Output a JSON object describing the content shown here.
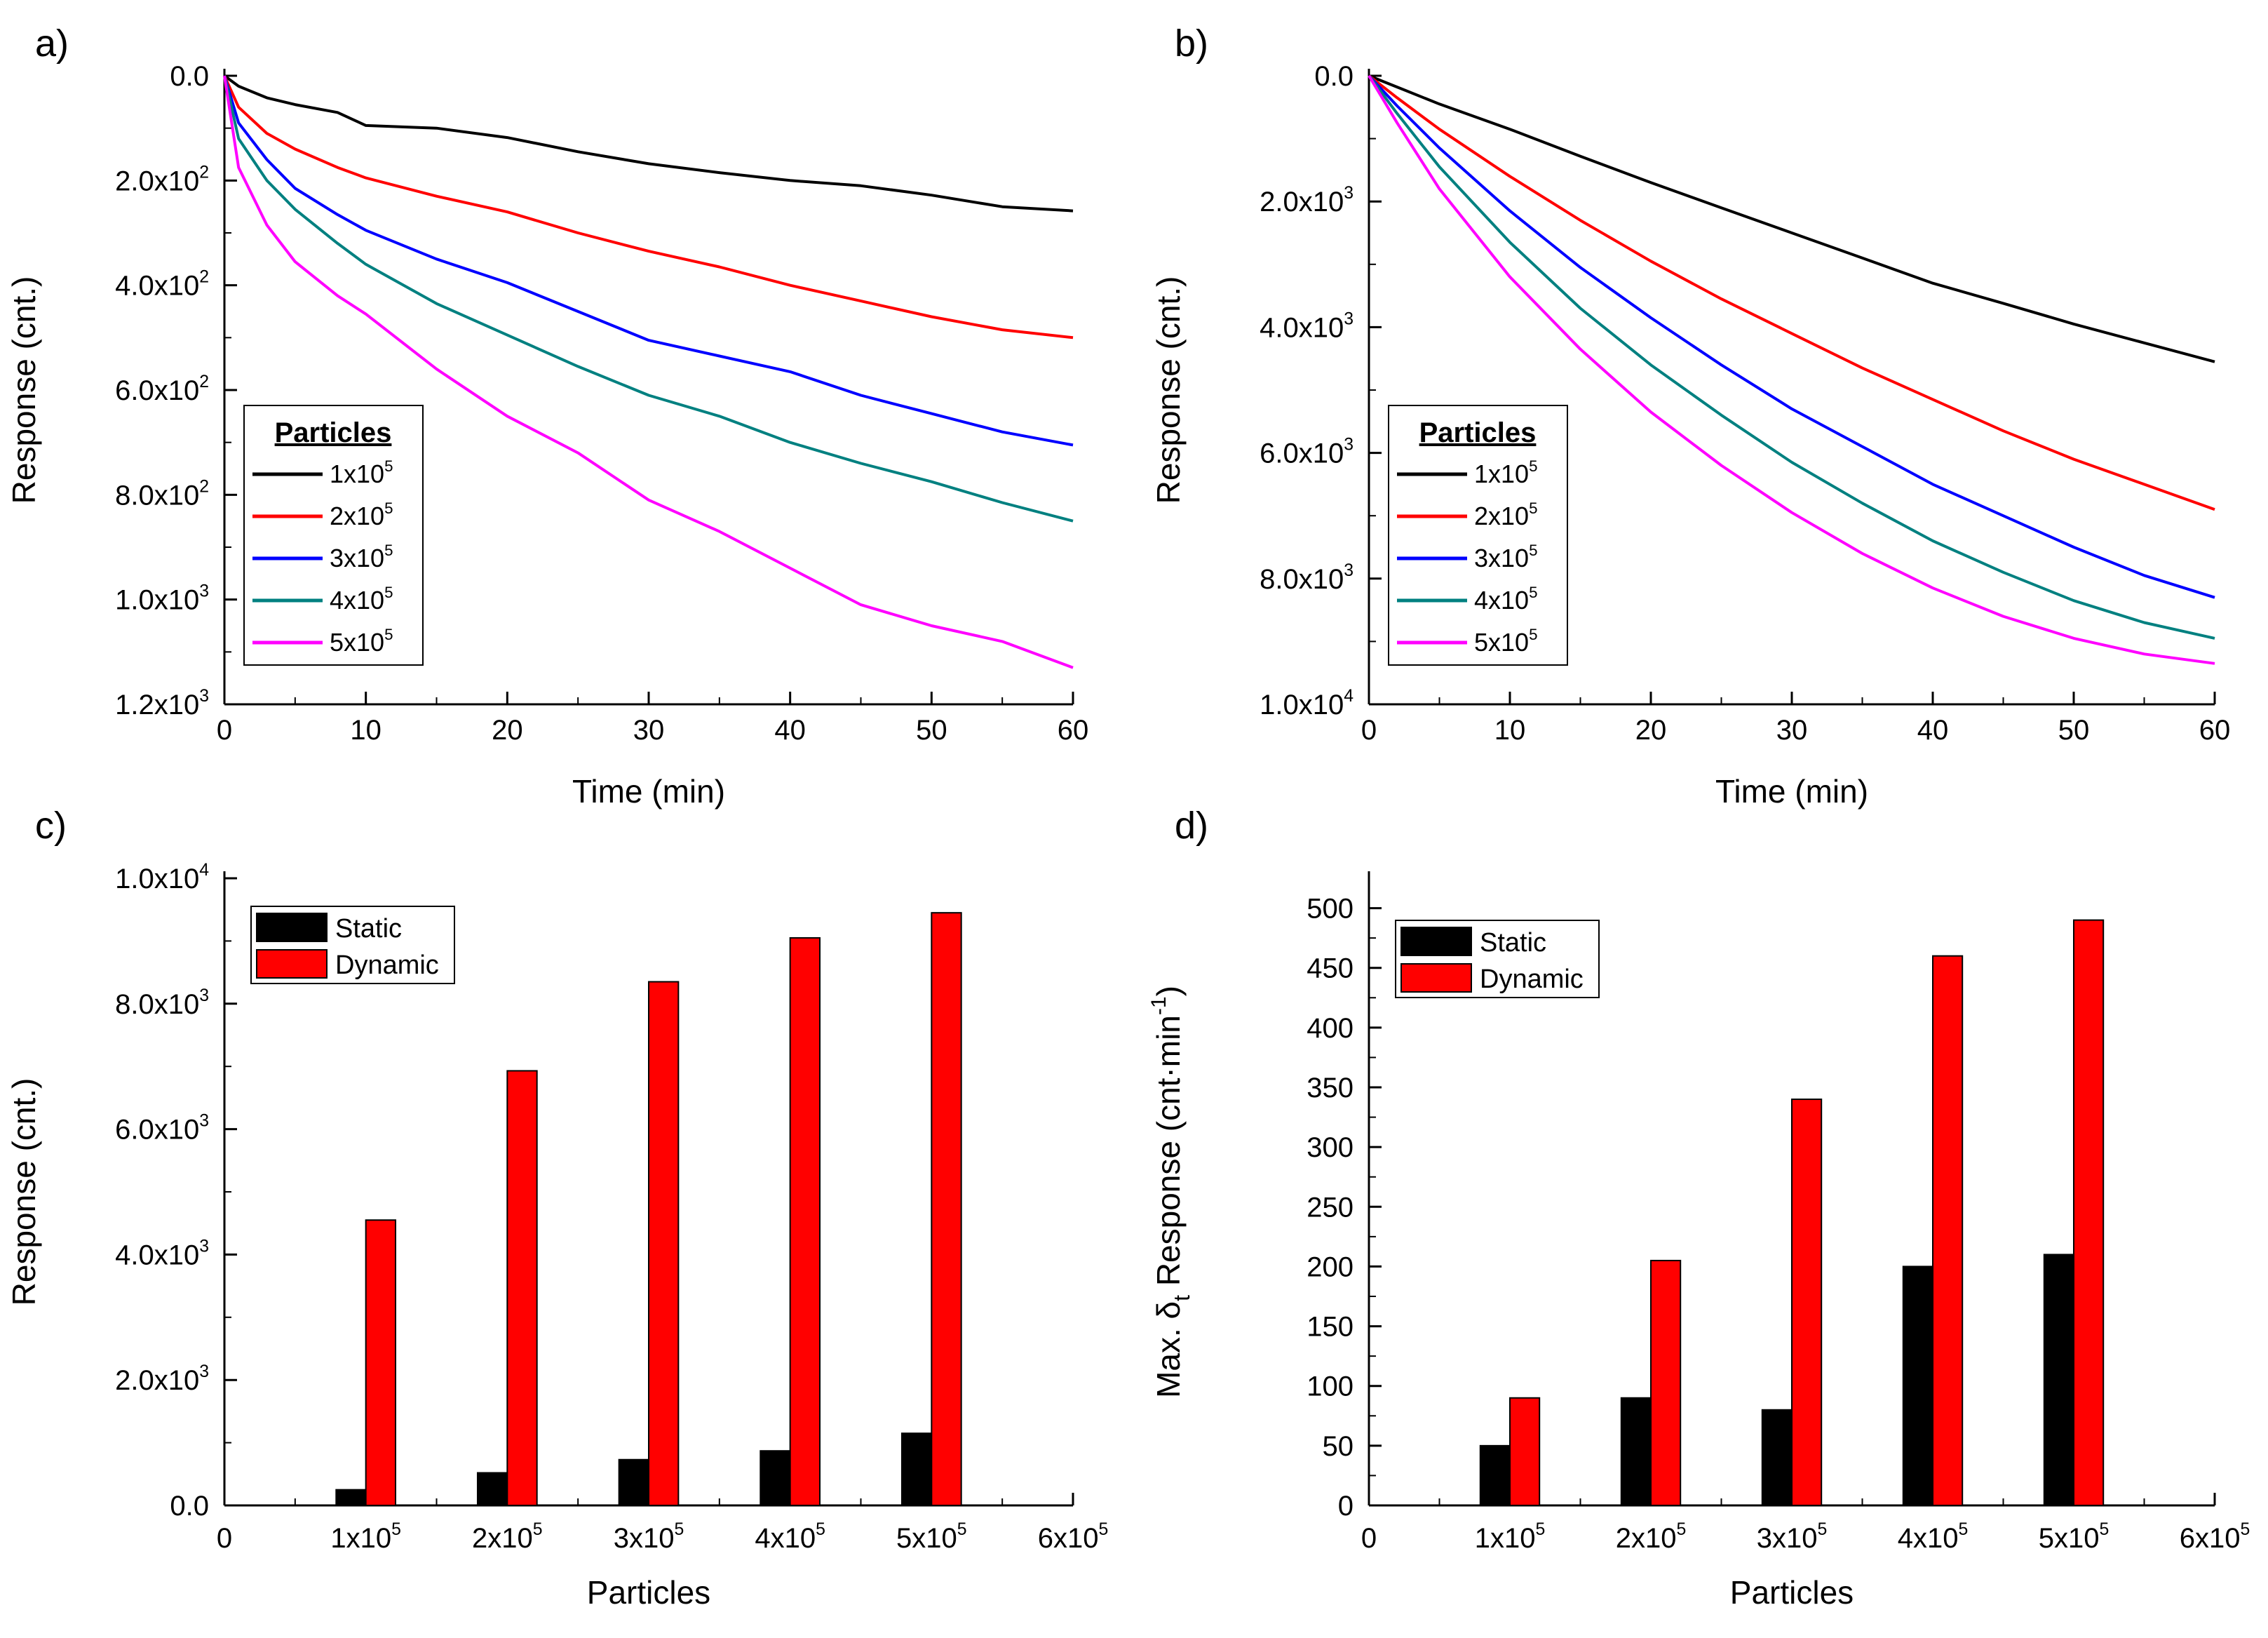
{
  "colors": {
    "black": "#000000",
    "red": "#ff0000",
    "blue": "#0000ff",
    "teal": "#008080",
    "magenta": "#ff00ff"
  },
  "chart_data": [
    {
      "panel": "a)",
      "type": "line",
      "xlabel": "Time (min)",
      "ylabel": "Response (cnt.)",
      "xlim": [
        0,
        60
      ],
      "ylim": [
        0,
        1200
      ],
      "y_inverted": true,
      "xticks": [
        0,
        10,
        20,
        30,
        40,
        50,
        60
      ],
      "xtick_labels": [
        "0",
        "10",
        "20",
        "30",
        "40",
        "50",
        "60"
      ],
      "yticks": [
        0,
        200,
        400,
        600,
        800,
        1000,
        1200
      ],
      "ytick_labels": [
        {
          "mant": "0.0",
          "exp": ""
        },
        {
          "mant": "2.0x10",
          "exp": "2"
        },
        {
          "mant": "4.0x10",
          "exp": "2"
        },
        {
          "mant": "6.0x10",
          "exp": "2"
        },
        {
          "mant": "8.0x10",
          "exp": "2"
        },
        {
          "mant": "1.0x10",
          "exp": "3"
        },
        {
          "mant": "1.2x10",
          "exp": "3"
        }
      ],
      "legend": {
        "title": "Particles",
        "placement": "bottom-left"
      },
      "series": [
        {
          "name": "1x10",
          "sup": "5",
          "color": "#000000",
          "x": [
            0,
            1,
            3,
            5,
            8,
            10,
            15,
            20,
            25,
            30,
            35,
            40,
            45,
            50,
            55,
            60
          ],
          "y": [
            0,
            20,
            42,
            55,
            70,
            95,
            100,
            118,
            145,
            168,
            185,
            200,
            210,
            228,
            250,
            258
          ]
        },
        {
          "name": "2x10",
          "sup": "5",
          "color": "#ff0000",
          "x": [
            0,
            1,
            3,
            5,
            8,
            10,
            15,
            20,
            25,
            30,
            35,
            40,
            45,
            50,
            55,
            60
          ],
          "y": [
            0,
            60,
            110,
            140,
            175,
            195,
            230,
            260,
            300,
            335,
            365,
            400,
            430,
            460,
            485,
            500
          ]
        },
        {
          "name": "3x10",
          "sup": "5",
          "color": "#0000ff",
          "x": [
            0,
            1,
            3,
            5,
            8,
            10,
            15,
            20,
            25,
            30,
            35,
            40,
            45,
            50,
            55,
            60
          ],
          "y": [
            0,
            90,
            160,
            215,
            265,
            295,
            350,
            395,
            450,
            505,
            535,
            565,
            610,
            645,
            680,
            705
          ]
        },
        {
          "name": "4x10",
          "sup": "5",
          "color": "#008080",
          "x": [
            0,
            1,
            3,
            5,
            8,
            10,
            15,
            20,
            25,
            30,
            35,
            40,
            45,
            50,
            55,
            60
          ],
          "y": [
            0,
            120,
            200,
            255,
            320,
            360,
            435,
            495,
            555,
            610,
            650,
            700,
            740,
            775,
            815,
            850
          ]
        },
        {
          "name": "5x10",
          "sup": "5",
          "color": "#ff00ff",
          "x": [
            0,
            1,
            3,
            5,
            8,
            10,
            15,
            20,
            25,
            30,
            35,
            40,
            45,
            50,
            55,
            60
          ],
          "y": [
            0,
            175,
            285,
            355,
            420,
            455,
            560,
            650,
            720,
            810,
            870,
            940,
            1010,
            1050,
            1080,
            1130
          ]
        }
      ]
    },
    {
      "panel": "b)",
      "type": "line",
      "xlabel": "Time (min)",
      "ylabel": "Response (cnt.)",
      "xlim": [
        0,
        60
      ],
      "ylim": [
        0,
        10000
      ],
      "y_inverted": true,
      "xticks": [
        0,
        10,
        20,
        30,
        40,
        50,
        60
      ],
      "xtick_labels": [
        "0",
        "10",
        "20",
        "30",
        "40",
        "50",
        "60"
      ],
      "yticks": [
        0,
        2000,
        4000,
        6000,
        8000,
        10000
      ],
      "ytick_labels": [
        {
          "mant": "0.0",
          "exp": ""
        },
        {
          "mant": "2.0x10",
          "exp": "3"
        },
        {
          "mant": "4.0x10",
          "exp": "3"
        },
        {
          "mant": "6.0x10",
          "exp": "3"
        },
        {
          "mant": "8.0x10",
          "exp": "3"
        },
        {
          "mant": "1.0x10",
          "exp": "4"
        }
      ],
      "legend": {
        "title": "Particles",
        "placement": "bottom-left"
      },
      "series": [
        {
          "name": "1x10",
          "sup": "5",
          "color": "#000000",
          "x": [
            0,
            2,
            5,
            10,
            15,
            20,
            25,
            30,
            35,
            40,
            45,
            50,
            55,
            60
          ],
          "y": [
            0,
            180,
            450,
            850,
            1280,
            1700,
            2100,
            2500,
            2900,
            3300,
            3620,
            3950,
            4250,
            4550
          ]
        },
        {
          "name": "2x10",
          "sup": "5",
          "color": "#ff0000",
          "x": [
            0,
            2,
            5,
            10,
            15,
            20,
            25,
            30,
            35,
            40,
            45,
            50,
            55,
            60
          ],
          "y": [
            0,
            350,
            850,
            1600,
            2300,
            2950,
            3550,
            4100,
            4650,
            5150,
            5650,
            6100,
            6500,
            6900
          ]
        },
        {
          "name": "3x10",
          "sup": "5",
          "color": "#0000ff",
          "x": [
            0,
            2,
            5,
            10,
            15,
            20,
            25,
            30,
            35,
            40,
            45,
            50,
            55,
            60
          ],
          "y": [
            0,
            480,
            1150,
            2150,
            3050,
            3850,
            4600,
            5300,
            5900,
            6500,
            7000,
            7500,
            7950,
            8300
          ]
        },
        {
          "name": "4x10",
          "sup": "5",
          "color": "#008080",
          "x": [
            0,
            2,
            5,
            10,
            15,
            20,
            25,
            30,
            35,
            40,
            45,
            50,
            55,
            60
          ],
          "y": [
            0,
            600,
            1450,
            2650,
            3700,
            4600,
            5400,
            6150,
            6800,
            7400,
            7900,
            8350,
            8700,
            8950
          ]
        },
        {
          "name": "5x10",
          "sup": "5",
          "color": "#ff00ff",
          "x": [
            0,
            2,
            5,
            10,
            15,
            20,
            25,
            30,
            35,
            40,
            45,
            50,
            55,
            60
          ],
          "y": [
            0,
            750,
            1800,
            3200,
            4350,
            5350,
            6200,
            6950,
            7600,
            8150,
            8600,
            8950,
            9200,
            9350
          ]
        }
      ]
    },
    {
      "panel": "c)",
      "type": "bar",
      "xlabel": "Particles",
      "ylabel": "Response (cnt.)",
      "xlim": [
        0,
        600000
      ],
      "ylim": [
        0,
        10000
      ],
      "xtick_labels": [
        {
          "mant": "0",
          "exp": ""
        },
        {
          "mant": "1x10",
          "exp": "5"
        },
        {
          "mant": "2x10",
          "exp": "5"
        },
        {
          "mant": "3x10",
          "exp": "5"
        },
        {
          "mant": "4x10",
          "exp": "5"
        },
        {
          "mant": "5x10",
          "exp": "5"
        },
        {
          "mant": "6x10",
          "exp": "5"
        }
      ],
      "yticks": [
        0,
        2000,
        4000,
        6000,
        8000,
        10000
      ],
      "ytick_labels": [
        {
          "mant": "0.0",
          "exp": ""
        },
        {
          "mant": "2.0x10",
          "exp": "3"
        },
        {
          "mant": "4.0x10",
          "exp": "3"
        },
        {
          "mant": "6.0x10",
          "exp": "3"
        },
        {
          "mant": "8.0x10",
          "exp": "3"
        },
        {
          "mant": "1.0x10",
          "exp": "4"
        }
      ],
      "categories": [
        100000,
        200000,
        300000,
        400000,
        500000
      ],
      "legend": {
        "placement": "top-left"
      },
      "series": [
        {
          "name": "Static",
          "color": "#000000",
          "values": [
            250,
            520,
            730,
            870,
            1150
          ]
        },
        {
          "name": "Dynamic",
          "color": "#ff0000",
          "values": [
            4550,
            6930,
            8350,
            9050,
            9450
          ]
        }
      ]
    },
    {
      "panel": "d)",
      "type": "bar",
      "xlabel": "Particles",
      "ylabel_main": "Max. δ",
      "ylabel_sub": "t",
      "ylabel_rest": " Response (cnt·min",
      "ylabel_sup": "-1",
      "ylabel_end": ")",
      "xlim": [
        0,
        600000
      ],
      "ylim": [
        0,
        525
      ],
      "xtick_labels": [
        {
          "mant": "0",
          "exp": ""
        },
        {
          "mant": "1x10",
          "exp": "5"
        },
        {
          "mant": "2x10",
          "exp": "5"
        },
        {
          "mant": "3x10",
          "exp": "5"
        },
        {
          "mant": "4x10",
          "exp": "5"
        },
        {
          "mant": "5x10",
          "exp": "5"
        },
        {
          "mant": "6x10",
          "exp": "5"
        }
      ],
      "yticks": [
        0,
        50,
        100,
        150,
        200,
        250,
        300,
        350,
        400,
        450,
        500
      ],
      "ytick_labels": [
        "0",
        "50",
        "100",
        "150",
        "200",
        "250",
        "300",
        "350",
        "400",
        "450",
        "500"
      ],
      "categories": [
        100000,
        200000,
        300000,
        400000,
        500000
      ],
      "legend": {
        "placement": "top-left"
      },
      "series": [
        {
          "name": "Static",
          "color": "#000000",
          "values": [
            50,
            90,
            80,
            200,
            210
          ]
        },
        {
          "name": "Dynamic",
          "color": "#ff0000",
          "values": [
            90,
            205,
            340,
            460,
            490
          ]
        }
      ]
    }
  ]
}
